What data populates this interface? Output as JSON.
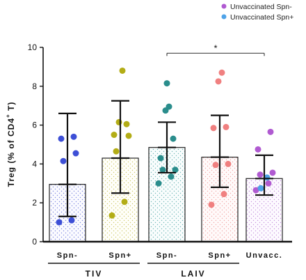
{
  "chart_data": {
    "type": "bar",
    "ylabel_main": "Treg (% of CD4",
    "ylabel_sup": "+",
    "ylabel_end": " T)",
    "ylim": [
      0,
      10
    ],
    "yticks": [
      "0",
      "2",
      "4",
      "6",
      "8",
      "10"
    ],
    "categories": [
      "Spn-",
      "Spn+",
      "Spn-",
      "Spn+",
      "Unvacc."
    ],
    "groups": [
      {
        "label": "TIV",
        "members": [
          0,
          1
        ]
      },
      {
        "label": "LAIV",
        "members": [
          2,
          3
        ]
      }
    ],
    "bars": [
      {
        "mean": 2.95,
        "err_low": 1.3,
        "err_high": 6.6,
        "color": "#3d4fd6",
        "points": [
          1.0,
          1.1,
          4.15,
          4.55,
          5.3,
          5.4
        ]
      },
      {
        "mean": 4.3,
        "err_low": 2.5,
        "err_high": 7.25,
        "color": "#b3ad16",
        "points": [
          1.35,
          2.05,
          4.65,
          5.45,
          5.5,
          6.05,
          6.15,
          8.8
        ]
      },
      {
        "mean": 4.85,
        "err_low": 3.55,
        "err_high": 6.15,
        "color": "#2a8d8c",
        "points": [
          3.0,
          3.35,
          3.7,
          3.7,
          4.3,
          5.3,
          6.75,
          6.95,
          8.15
        ]
      },
      {
        "mean": 4.35,
        "err_low": 2.8,
        "err_high": 6.5,
        "color": "#f08080",
        "points": [
          1.9,
          2.45,
          3.95,
          4.0,
          5.85,
          5.9,
          8.25,
          8.7
        ]
      },
      {
        "mean": 3.25,
        "err_low": 2.4,
        "err_high": 4.45,
        "color": "#b05ad1",
        "points": [
          2.65,
          3.0,
          3.45,
          3.55,
          4.75,
          5.65
        ],
        "points_spn_pos": [
          2.75,
          3.3
        ]
      }
    ],
    "significance": {
      "from": 2,
      "to": 4,
      "y": 9.7,
      "label": "*"
    },
    "legend": [
      {
        "name": "Unvaccinated Spn-",
        "color": "#b05ad1"
      },
      {
        "name": "Unvaccinated Spn+",
        "color": "#4fa3e8"
      }
    ]
  }
}
